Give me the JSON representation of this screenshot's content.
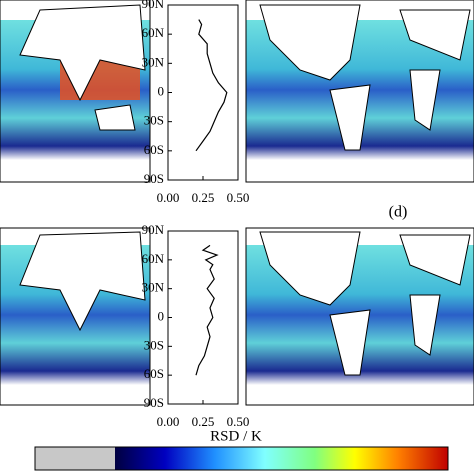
{
  "chart_data": [
    {
      "type": "line",
      "y": [
        75,
        70,
        60,
        50,
        40,
        30,
        20,
        10,
        0,
        -10,
        -20,
        -30,
        -40,
        -50,
        -60
      ],
      "values": [
        0.22,
        0.24,
        0.22,
        0.28,
        0.28,
        0.3,
        0.32,
        0.36,
        0.42,
        0.4,
        0.36,
        0.33,
        0.3,
        0.25,
        0.2
      ],
      "color": "#000000",
      "ylim": [
        -90,
        90
      ],
      "yticks": [
        {
          "value": 90,
          "label": "90N"
        },
        {
          "value": 60,
          "label": "60N"
        },
        {
          "value": 30,
          "label": "30N"
        },
        0,
        {
          "value": -30,
          "label": "30S"
        },
        {
          "value": -60,
          "label": "60S"
        },
        {
          "value": -90,
          "label": "90S"
        }
      ],
      "xlim": [
        0,
        0.5
      ],
      "xticks": [
        {
          "value": 0,
          "label": "0.00"
        },
        0.25,
        {
          "value": 0.5,
          "label": "0.50"
        }
      ]
    },
    {
      "type": "line",
      "y": [
        75,
        70,
        65,
        60,
        55,
        50,
        40,
        30,
        20,
        10,
        0,
        -10,
        -20,
        -30,
        -40,
        -50,
        -60
      ],
      "values": [
        0.3,
        0.25,
        0.35,
        0.27,
        0.32,
        0.3,
        0.33,
        0.28,
        0.33,
        0.3,
        0.32,
        0.28,
        0.3,
        0.28,
        0.26,
        0.22,
        0.2
      ],
      "color": "#000000",
      "ylim": [
        -90,
        90
      ],
      "yticks": [
        {
          "value": 90,
          "label": "90N"
        },
        {
          "value": 60,
          "label": "60N"
        },
        {
          "value": 30,
          "label": "30N"
        },
        0,
        {
          "value": -30,
          "label": "30S"
        },
        {
          "value": -60,
          "label": "60S"
        },
        {
          "value": -90,
          "label": "90S"
        }
      ],
      "xlim": [
        0,
        0.5
      ],
      "xticks": [
        {
          "value": 0,
          "label": "0.00"
        },
        0.25,
        {
          "value": 0.5,
          "label": "0.50"
        }
      ]
    }
  ],
  "panel_label": "(d)",
  "colorbar_title": "RSD / K"
}
